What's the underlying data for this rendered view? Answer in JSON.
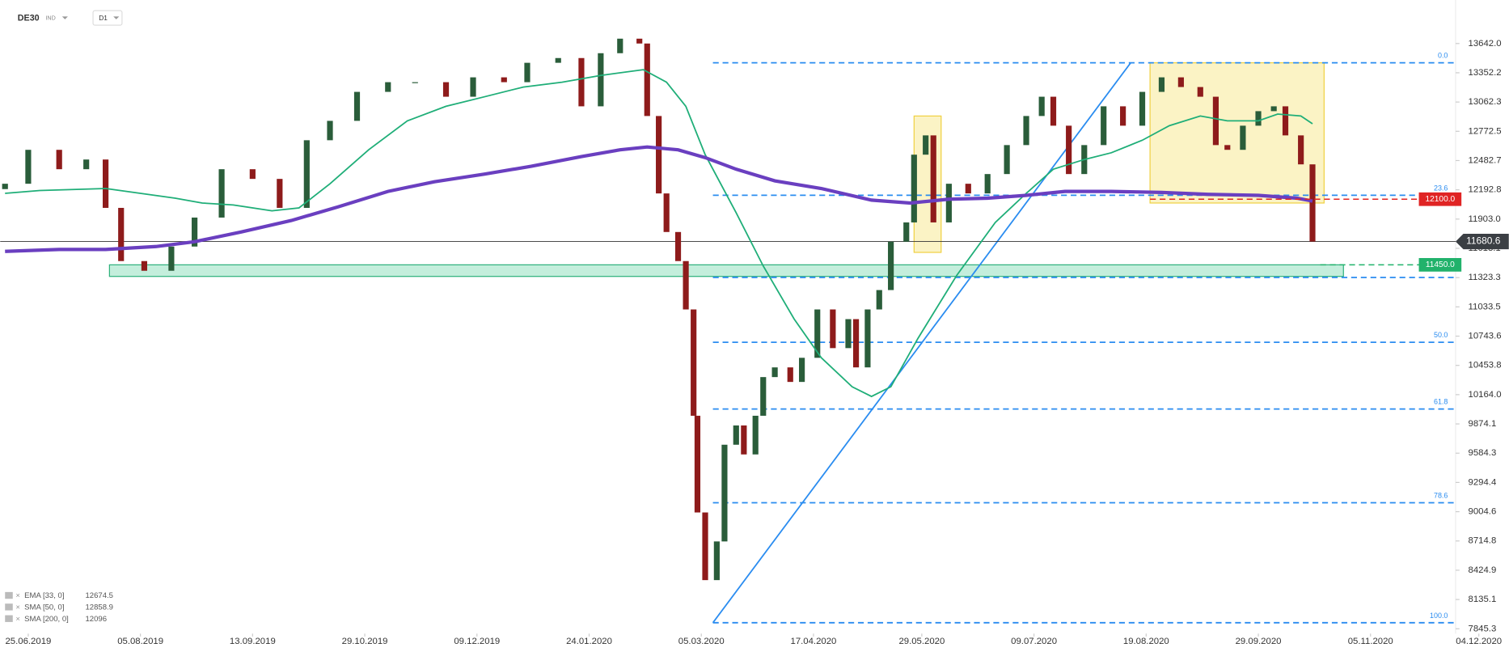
{
  "chart_data": {
    "type": "candlestick",
    "symbol": "DE30",
    "instrument_type": "IND",
    "interval": "D1",
    "up_color": "#2a5d3a",
    "down_color": "#8e1b1b",
    "xlim": [
      -1.25,
      375
    ],
    "ylim": [
      7797,
      14073
    ],
    "xticks": [
      {
        "value": 6,
        "label": "25.06.2019"
      },
      {
        "value": 35,
        "label": "05.08.2019"
      },
      {
        "value": 64,
        "label": "13.09.2019"
      },
      {
        "value": 93,
        "label": "29.10.2019"
      },
      {
        "value": 122,
        "label": "09.12.2019"
      },
      {
        "value": 151,
        "label": "24.01.2020"
      },
      {
        "value": 180,
        "label": "05.03.2020"
      },
      {
        "value": 209,
        "label": "17.04.2020"
      },
      {
        "value": 237,
        "label": "29.05.2020"
      },
      {
        "value": 266,
        "label": "09.07.2020"
      },
      {
        "value": 295,
        "label": "19.08.2020"
      },
      {
        "value": 324,
        "label": "29.09.2020"
      },
      {
        "value": 353,
        "label": "05.11.2020"
      },
      {
        "value": 381,
        "label": "04.12.2020"
      }
    ],
    "yticks": [
      {
        "value": 13642,
        "label": "13642.0"
      },
      13352.2,
      13062.3,
      12772.5,
      12482.7,
      12192.8,
      {
        "value": 11903,
        "label": "11903.0"
      },
      11613.1,
      11323.3,
      11033.5,
      10743.6,
      10453.8,
      {
        "value": 10164,
        "label": "10164.0"
      },
      9874.1,
      9584.3,
      9294.4,
      9004.6,
      8714.8,
      8424.9,
      8135.1,
      7845.3
    ],
    "x": [
      0,
      6,
      14,
      21,
      26,
      30,
      36,
      43,
      49,
      56,
      64,
      71,
      78,
      84,
      91,
      99,
      106,
      114,
      121,
      129,
      135,
      143,
      149,
      154,
      159,
      164,
      166,
      169,
      171,
      174,
      176,
      178,
      179,
      181,
      184,
      186,
      189,
      191,
      194,
      196,
      199,
      203,
      206,
      210,
      214,
      218,
      220,
      223,
      226,
      229,
      233,
      235,
      238,
      240,
      244,
      249,
      254,
      259,
      264,
      268,
      271,
      275,
      279,
      284,
      289,
      294,
      299,
      304,
      309,
      313,
      316,
      320,
      324,
      328,
      331,
      335,
      338
    ],
    "open": [
      12200,
      12253,
      12589,
      12397,
      12493,
      12014,
      11487,
      11391,
      11631,
      11918,
      12397,
      12301,
      12014,
      12684,
      12876,
      13163,
      13259,
      13259,
      13115,
      13307,
      13259,
      13451,
      13498,
      13020,
      13546,
      13690,
      13642,
      12924,
      12157,
      11775,
      11487,
      11008,
      9955,
      8997,
      8327,
      8710,
      9668,
      9859,
      9572,
      9955,
      10338,
      10434,
      10290,
      10529,
      11008,
      10625,
      10912,
      10434,
      11008,
      11200,
      11679,
      11870,
      12541,
      12732,
      11870,
      12253,
      12157,
      12349,
      12636,
      12924,
      13115,
      12828,
      12349,
      12636,
      13020,
      12828,
      13163,
      13307,
      13211,
      13115,
      12636,
      12589,
      12828,
      12972,
      13020,
      12732,
      12445
    ],
    "close": [
      12253,
      12589,
      12397,
      12493,
      12014,
      11487,
      11391,
      11631,
      11918,
      12397,
      12301,
      12014,
      12684,
      12876,
      13163,
      13259,
      13259,
      13115,
      13307,
      13259,
      13451,
      13498,
      13020,
      13546,
      13690,
      13642,
      12924,
      12157,
      11775,
      11487,
      11008,
      9955,
      8997,
      8327,
      8710,
      9668,
      9859,
      9572,
      9955,
      10338,
      10434,
      10290,
      10529,
      11008,
      10625,
      10912,
      10434,
      11008,
      11200,
      11679,
      11870,
      12541,
      12732,
      11870,
      12253,
      12157,
      12349,
      12636,
      12924,
      13115,
      12828,
      12349,
      12636,
      13020,
      12828,
      13163,
      13307,
      13211,
      13115,
      12636,
      12589,
      12828,
      12972,
      13020,
      12732,
      12445,
      11680.6
    ],
    "indicators": [
      {
        "name": "EMA [33, 0]",
        "value": 12674.5
      },
      {
        "name": "SMA [50, 0]",
        "value": 12858.9,
        "color": "#1fae78",
        "width": 1.5,
        "x": [
          0,
          9,
          26,
          44,
          51,
          59,
          69,
          76,
          84,
          94,
          104,
          114,
          124,
          134,
          144,
          154,
          165,
          171,
          176,
          181,
          189,
          196,
          204,
          211,
          219,
          224,
          229,
          236,
          246,
          256,
          264,
          271,
          279,
          286,
          294,
          301,
          309,
          316,
          324,
          329,
          335,
          338
        ],
        "values": [
          12158,
          12186,
          12206,
          12110,
          12062,
          12043,
          11985,
          12014,
          12253,
          12589,
          12876,
          13020,
          13115,
          13211,
          13259,
          13326,
          13383,
          13259,
          13020,
          12541,
          11966,
          11439,
          10913,
          10530,
          10242,
          10146,
          10242,
          10721,
          11344,
          11870,
          12158,
          12397,
          12493,
          12560,
          12684,
          12828,
          12924,
          12876,
          12876,
          12943,
          12924,
          12847
        ]
      },
      {
        "name": "SMA [200, 0]",
        "value": 12096.0,
        "color": "#6a3fc0",
        "width": 3.5,
        "x": [
          0,
          14,
          26,
          39,
          49,
          61,
          74,
          86,
          99,
          111,
          124,
          136,
          149,
          159,
          166,
          174,
          181,
          189,
          199,
          211,
          224,
          234,
          244,
          254,
          264,
          274,
          286,
          299,
          311,
          324,
          334,
          338
        ],
        "values": [
          11583,
          11602,
          11602,
          11631,
          11679,
          11775,
          11889,
          12023,
          12177,
          12273,
          12349,
          12426,
          12522,
          12589,
          12617,
          12589,
          12512,
          12397,
          12282,
          12206,
          12091,
          12062,
          12100,
          12110,
          12138,
          12177,
          12177,
          12167,
          12148,
          12138,
          12110,
          12081
        ]
      }
    ],
    "fib_levels": [
      {
        "price": 13451,
        "label": "0.0"
      },
      {
        "price": 12139,
        "label": "23.6"
      },
      {
        "price": 11325
      },
      {
        "price": 10683,
        "label": "50.0"
      },
      {
        "price": 10022,
        "label": "61.8"
      },
      {
        "price": 9093,
        "label": "78.6"
      },
      {
        "price": 7905,
        "label": "100.0"
      }
    ],
    "fib_start": 183,
    "price_tags": [
      {
        "value": 12100,
        "label": "12100.0",
        "color": "#e02424",
        "from": 296
      },
      {
        "value": 11450,
        "label": "11450.0",
        "color": "#21b26b",
        "from": 340
      }
    ],
    "last_price": 11680.6,
    "support_zone": {
      "from": 27,
      "to": 346,
      "low": 11335,
      "high": 11450
    },
    "highlight_boxes": [
      {
        "from": 235,
        "to": 242,
        "low": 11573,
        "high": 12924
      },
      {
        "from": 296,
        "to": 341,
        "low": 12062,
        "high": 13451
      }
    ],
    "trendline": {
      "x": [
        183,
        291
      ],
      "values": [
        7905,
        13451
      ]
    }
  }
}
